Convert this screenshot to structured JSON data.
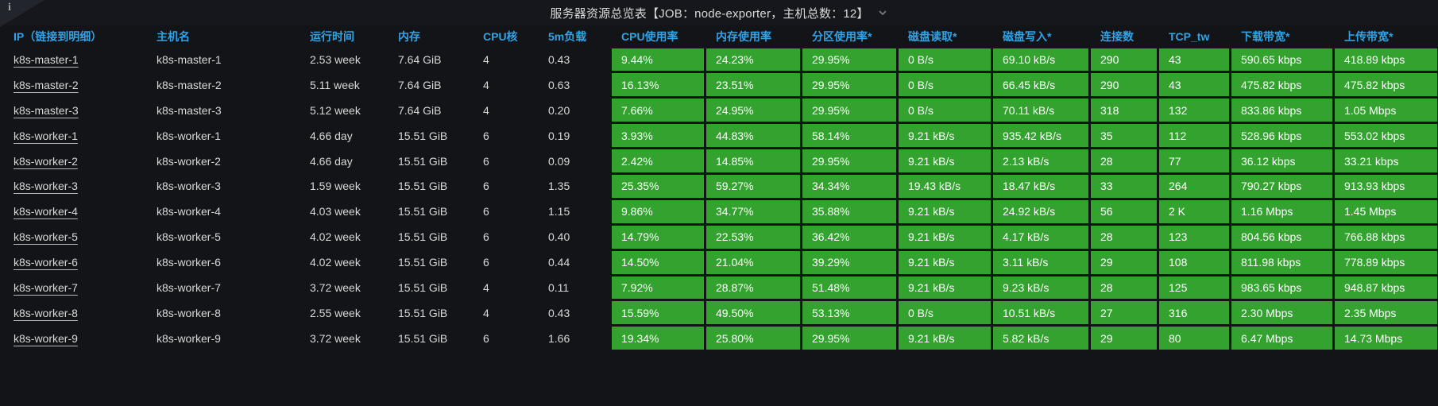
{
  "panel": {
    "title": "服务器资源总览表【JOB：node-exporter，主机总数：12】",
    "info_icon": "i",
    "chevron_icon": "chevron-down"
  },
  "colors": {
    "green": "#33a22f",
    "header_blue": "#33a2e5",
    "background": "#131417",
    "text": "#d8d9da"
  },
  "table": {
    "columns": [
      {
        "key": "ip",
        "label": "IP（链接到明细）",
        "type": "link",
        "colored": false
      },
      {
        "key": "hostname",
        "label": "主机名",
        "type": "text",
        "colored": false
      },
      {
        "key": "uptime",
        "label": "运行时间",
        "type": "text",
        "colored": false
      },
      {
        "key": "memory",
        "label": "内存",
        "type": "text",
        "colored": false
      },
      {
        "key": "cpu_cores",
        "label": "CPU核",
        "type": "text",
        "colored": false
      },
      {
        "key": "load_5m",
        "label": "5m负载",
        "type": "text",
        "colored": false
      },
      {
        "key": "cpu_usage",
        "label": "CPU使用率",
        "type": "text",
        "colored": true
      },
      {
        "key": "mem_usage",
        "label": "内存使用率",
        "type": "text",
        "colored": true
      },
      {
        "key": "partition_usage",
        "label": "分区使用率*",
        "type": "text",
        "colored": true
      },
      {
        "key": "disk_read",
        "label": "磁盘读取*",
        "type": "text",
        "colored": true
      },
      {
        "key": "disk_write",
        "label": "磁盘写入*",
        "type": "text",
        "colored": true
      },
      {
        "key": "connections",
        "label": "连接数",
        "type": "text",
        "colored": true
      },
      {
        "key": "tcp_tw",
        "label": "TCP_tw",
        "type": "text",
        "colored": true
      },
      {
        "key": "download_bw",
        "label": "下载带宽*",
        "type": "text",
        "colored": true
      },
      {
        "key": "upload_bw",
        "label": "上传带宽*",
        "type": "text",
        "colored": true
      }
    ],
    "rows": [
      [
        "k8s-master-1",
        "k8s-master-1",
        "2.53 week",
        "7.64 GiB",
        "4",
        "0.43",
        "9.44%",
        "24.23%",
        "29.95%",
        "0 B/s",
        "69.10 kB/s",
        "290",
        "43",
        "590.65 kbps",
        "418.89 kbps"
      ],
      [
        "k8s-master-2",
        "k8s-master-2",
        "5.11 week",
        "7.64 GiB",
        "4",
        "0.63",
        "16.13%",
        "23.51%",
        "29.95%",
        "0 B/s",
        "66.45 kB/s",
        "290",
        "43",
        "475.82 kbps",
        "475.82 kbps"
      ],
      [
        "k8s-master-3",
        "k8s-master-3",
        "5.12 week",
        "7.64 GiB",
        "4",
        "0.20",
        "7.66%",
        "24.95%",
        "29.95%",
        "0 B/s",
        "70.11 kB/s",
        "318",
        "132",
        "833.86 kbps",
        "1.05 Mbps"
      ],
      [
        "k8s-worker-1",
        "k8s-worker-1",
        "4.66 day",
        "15.51 GiB",
        "6",
        "0.19",
        "3.93%",
        "44.83%",
        "58.14%",
        "9.21 kB/s",
        "935.42 kB/s",
        "35",
        "112",
        "528.96 kbps",
        "553.02 kbps"
      ],
      [
        "k8s-worker-2",
        "k8s-worker-2",
        "4.66 day",
        "15.51 GiB",
        "6",
        "0.09",
        "2.42%",
        "14.85%",
        "29.95%",
        "9.21 kB/s",
        "2.13 kB/s",
        "28",
        "77",
        "36.12 kbps",
        "33.21 kbps"
      ],
      [
        "k8s-worker-3",
        "k8s-worker-3",
        "1.59 week",
        "15.51 GiB",
        "6",
        "1.35",
        "25.35%",
        "59.27%",
        "34.34%",
        "19.43 kB/s",
        "18.47 kB/s",
        "33",
        "264",
        "790.27 kbps",
        "913.93 kbps"
      ],
      [
        "k8s-worker-4",
        "k8s-worker-4",
        "4.03 week",
        "15.51 GiB",
        "6",
        "1.15",
        "9.86%",
        "34.77%",
        "35.88%",
        "9.21 kB/s",
        "24.92 kB/s",
        "56",
        "2 K",
        "1.16 Mbps",
        "1.45 Mbps"
      ],
      [
        "k8s-worker-5",
        "k8s-worker-5",
        "4.02 week",
        "15.51 GiB",
        "6",
        "0.40",
        "14.79%",
        "22.53%",
        "36.42%",
        "9.21 kB/s",
        "4.17 kB/s",
        "28",
        "123",
        "804.56 kbps",
        "766.88 kbps"
      ],
      [
        "k8s-worker-6",
        "k8s-worker-6",
        "4.02 week",
        "15.51 GiB",
        "6",
        "0.44",
        "14.50%",
        "21.04%",
        "39.29%",
        "9.21 kB/s",
        "3.11 kB/s",
        "29",
        "108",
        "811.98 kbps",
        "778.89 kbps"
      ],
      [
        "k8s-worker-7",
        "k8s-worker-7",
        "3.72 week",
        "15.51 GiB",
        "4",
        "0.11",
        "7.92%",
        "28.87%",
        "51.48%",
        "9.21 kB/s",
        "9.23 kB/s",
        "28",
        "125",
        "983.65 kbps",
        "948.87 kbps"
      ],
      [
        "k8s-worker-8",
        "k8s-worker-8",
        "2.55 week",
        "15.51 GiB",
        "4",
        "0.43",
        "15.59%",
        "49.50%",
        "53.13%",
        "0 B/s",
        "10.51 kB/s",
        "27",
        "316",
        "2.30 Mbps",
        "2.35 Mbps"
      ],
      [
        "k8s-worker-9",
        "k8s-worker-9",
        "3.72 week",
        "15.51 GiB",
        "6",
        "1.66",
        "19.34%",
        "25.80%",
        "29.95%",
        "9.21 kB/s",
        "5.82 kB/s",
        "29",
        "80",
        "6.47 Mbps",
        "14.73 Mbps"
      ]
    ]
  }
}
